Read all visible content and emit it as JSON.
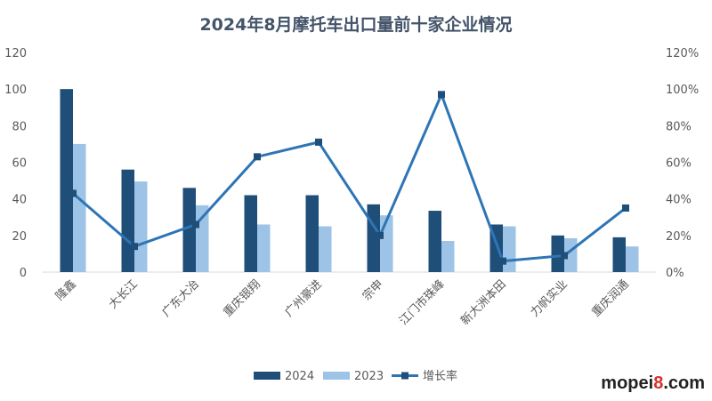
{
  "chart_data": {
    "type": "bar",
    "title": "2024年8月摩托车出口量前十家企业情况",
    "categories": [
      "隆鑫",
      "大长江",
      "广东大冶",
      "重庆银翔",
      "广州豪进",
      "宗申",
      "江门市珠峰",
      "新大洲本田",
      "力帆实业",
      "重庆润通"
    ],
    "series": [
      {
        "name": "2024",
        "type": "bar",
        "color": "#1f4e79",
        "values": [
          100,
          56,
          46,
          42,
          42,
          37,
          33.5,
          26,
          20,
          19
        ]
      },
      {
        "name": "2023",
        "type": "bar",
        "color": "#9dc3e6",
        "values": [
          70,
          49.5,
          36.5,
          26,
          25,
          31,
          17,
          25,
          18.5,
          14
        ]
      },
      {
        "name": "增长率",
        "type": "line",
        "axis": "right",
        "color": "#2e75b6",
        "values": [
          43,
          14,
          26,
          63,
          71,
          20,
          97,
          6,
          9,
          35
        ]
      }
    ],
    "ylim": [
      0,
      120
    ],
    "yticks": [
      "0",
      "20",
      "40",
      "60",
      "80",
      "100",
      "120"
    ],
    "y2lim": [
      0,
      120
    ],
    "y2ticks": [
      "0%",
      "20%",
      "40%",
      "60%",
      "80%",
      "100%",
      "120%"
    ],
    "legend": "bottom",
    "grid": false
  },
  "watermark": {
    "pre": "mopei",
    "num": "8",
    "post": ".com"
  }
}
